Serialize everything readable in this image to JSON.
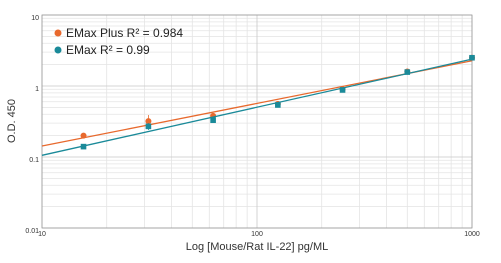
{
  "chart_data": {
    "type": "scatter",
    "x_label": "Log [Mouse/Rat IL-22] pg/ML",
    "y_label": "O.D. 450",
    "log_x": true,
    "log_y": true,
    "grid": true,
    "legend": "upper left",
    "xlim": [
      10,
      1000
    ],
    "ylim": [
      0.01,
      10
    ],
    "xticks": [
      10,
      100,
      1000
    ],
    "yticks": [
      0.01,
      0.1,
      1,
      10
    ],
    "series": [
      {
        "name": "EMax Plus R² = 0.984",
        "color": "#e8692d",
        "marker": "circle",
        "x": [
          15.6,
          31.25,
          62.5,
          125,
          250,
          500,
          1000
        ],
        "values": [
          0.2,
          0.32,
          0.38,
          0.56,
          0.9,
          1.6,
          2.5
        ],
        "errors": [
          null,
          0.07,
          null,
          null,
          null,
          null,
          null
        ]
      },
      {
        "name": "EMax R² = 0.99",
        "color": "#1a8a99",
        "marker": "square",
        "x": [
          15.6,
          31.25,
          62.5,
          125,
          250,
          500,
          1000
        ],
        "values": [
          0.14,
          0.27,
          0.33,
          0.54,
          0.88,
          1.57,
          2.5
        ],
        "errors": [
          null,
          0.03,
          null,
          null,
          null,
          null,
          null
        ]
      }
    ]
  }
}
